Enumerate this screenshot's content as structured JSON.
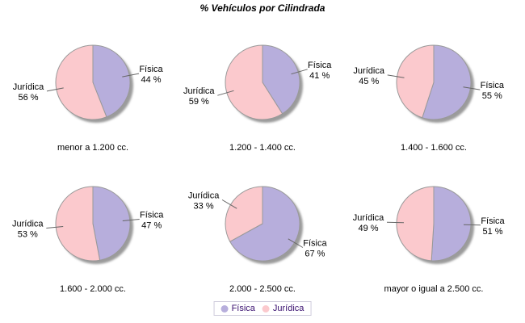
{
  "title": "% Vehículos por Cilindrada",
  "colors": {
    "fisica": "#b7aedc",
    "juridica": "#fbc9cd",
    "shadow": "#9b9b9b",
    "slice_outline": "#999999",
    "leader_line": "#666666",
    "label_text": "#000000",
    "legend_text": "#3a1070",
    "legend_border": "#cfccdc",
    "background": "#ffffff"
  },
  "legend": {
    "position": "bottom",
    "items": [
      {
        "label": "Física",
        "color": "#b7aedc"
      },
      {
        "label": "Jurídica",
        "color": "#fbc9cd"
      }
    ]
  },
  "value_suffix": " %",
  "chart_data": [
    {
      "type": "pie",
      "title": "menor a 1.200 cc.",
      "labels": [
        "Física",
        "Jurídica"
      ],
      "values": [
        44,
        56
      ],
      "colors": [
        "#b7aedc",
        "#fbc9cd"
      ],
      "value_labels": [
        "44 %",
        "56 %"
      ]
    },
    {
      "type": "pie",
      "title": "1.200 - 1.400 cc.",
      "labels": [
        "Física",
        "Jurídica"
      ],
      "values": [
        41,
        59
      ],
      "colors": [
        "#b7aedc",
        "#fbc9cd"
      ],
      "value_labels": [
        "41 %",
        "59 %"
      ]
    },
    {
      "type": "pie",
      "title": "1.400 - 1.600 cc.",
      "labels": [
        "Física",
        "Jurídica"
      ],
      "values": [
        55,
        45
      ],
      "colors": [
        "#b7aedc",
        "#fbc9cd"
      ],
      "value_labels": [
        "55 %",
        "45 %"
      ]
    },
    {
      "type": "pie",
      "title": "1.600 - 2.000 cc.",
      "labels": [
        "Física",
        "Jurídica"
      ],
      "values": [
        47,
        53
      ],
      "colors": [
        "#b7aedc",
        "#fbc9cd"
      ],
      "value_labels": [
        "47 %",
        "53 %"
      ]
    },
    {
      "type": "pie",
      "title": "2.000 - 2.500 cc.",
      "labels": [
        "Física",
        "Jurídica"
      ],
      "values": [
        67,
        33
      ],
      "colors": [
        "#b7aedc",
        "#fbc9cd"
      ],
      "value_labels": [
        "67 %",
        "33 %"
      ]
    },
    {
      "type": "pie",
      "title": "mayor o igual a 2.500 cc.",
      "labels": [
        "Física",
        "Jurídica"
      ],
      "values": [
        51,
        49
      ],
      "colors": [
        "#b7aedc",
        "#fbc9cd"
      ],
      "value_labels": [
        "51 %",
        "49 %"
      ]
    }
  ]
}
